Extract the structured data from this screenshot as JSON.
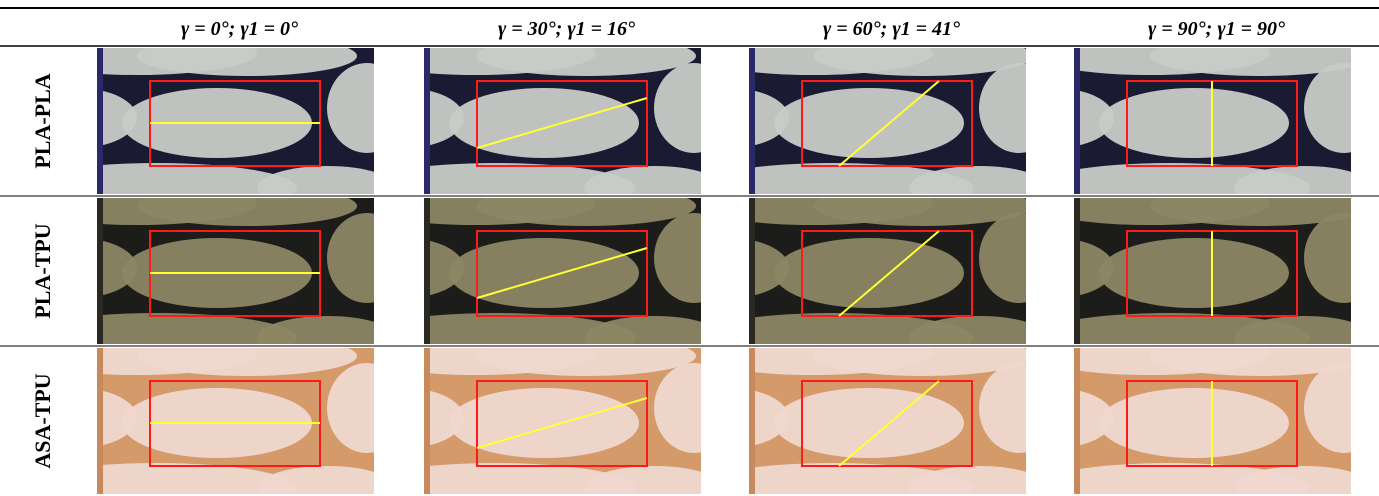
{
  "table": {
    "headers": [
      "γ = 0°; γ1 = 0°",
      "γ = 30°; γ1 = 16°",
      "γ = 60°; γ1 = 41°",
      "γ = 90°; γ1 = 90°"
    ],
    "rows": [
      "PLA-PLA",
      "PLA-TPU",
      "ASA-TPU"
    ]
  }
}
